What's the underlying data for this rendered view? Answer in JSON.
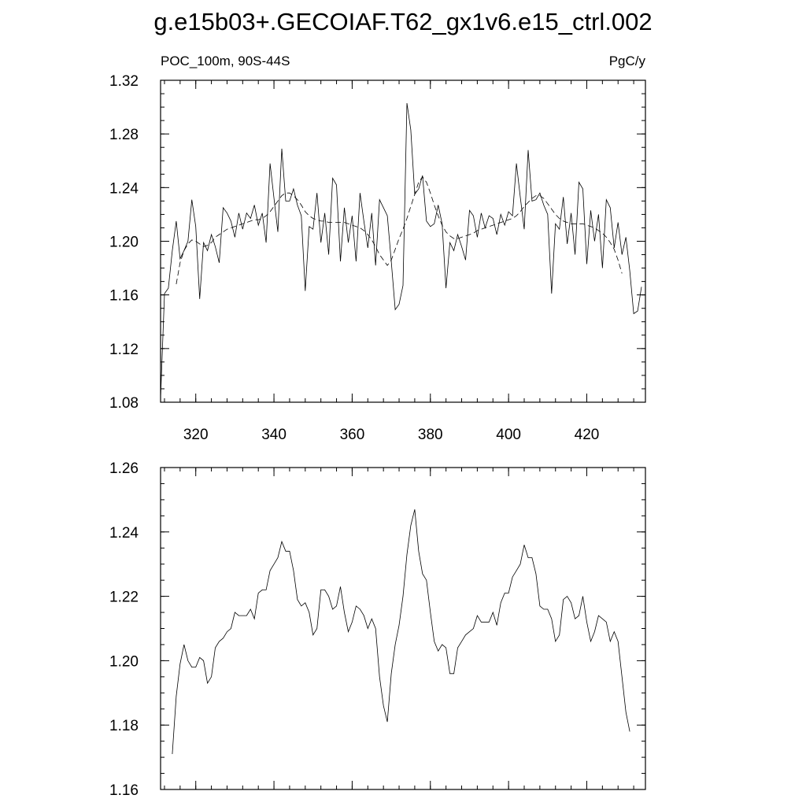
{
  "title": "g.e15b03+.GECOIAF.T62_gx1v6.e15_ctrl.002",
  "chart_data": [
    {
      "type": "line",
      "left_label": "POC_100m, 90S-44S",
      "right_label": "PgC/y",
      "xlim": [
        311,
        435
      ],
      "ylim": [
        1.08,
        1.32
      ],
      "x_ticks": [
        320,
        340,
        360,
        380,
        400,
        420
      ],
      "x_tick_labels": [
        "320",
        "340",
        "360",
        "380",
        "400",
        "420"
      ],
      "y_ticks": [
        1.08,
        1.12,
        1.16,
        1.2,
        1.24,
        1.28,
        1.32
      ],
      "y_tick_labels": [
        "1.08",
        "1.12",
        "1.16",
        "1.20",
        "1.24",
        "1.28",
        "1.32"
      ],
      "x_start": 311,
      "x_step": 1,
      "series": [
        {
          "style": "solid",
          "values": [
            1.083,
            1.161,
            1.165,
            1.193,
            1.215,
            1.187,
            1.193,
            1.2,
            1.231,
            1.211,
            1.157,
            1.199,
            1.193,
            1.205,
            1.196,
            1.184,
            1.225,
            1.221,
            1.215,
            1.203,
            1.221,
            1.209,
            1.221,
            1.217,
            1.227,
            1.212,
            1.221,
            1.199,
            1.258,
            1.232,
            1.207,
            1.269,
            1.23,
            1.23,
            1.239,
            1.227,
            1.219,
            1.163,
            1.211,
            1.209,
            1.236,
            1.199,
            1.221,
            1.19,
            1.247,
            1.242,
            1.185,
            1.225,
            1.199,
            1.219,
            1.185,
            1.236,
            1.215,
            1.195,
            1.221,
            1.182,
            1.231,
            1.225,
            1.219,
            1.185,
            1.149,
            1.153,
            1.167,
            1.303,
            1.283,
            1.235,
            1.239,
            1.249,
            1.215,
            1.211,
            1.213,
            1.227,
            1.213,
            1.165,
            1.199,
            1.193,
            1.205,
            1.196,
            1.186,
            1.223,
            1.219,
            1.203,
            1.221,
            1.21,
            1.219,
            1.217,
            1.205,
            1.22,
            1.212,
            1.222,
            1.219,
            1.258,
            1.233,
            1.209,
            1.268,
            1.23,
            1.231,
            1.236,
            1.227,
            1.22,
            1.161,
            1.213,
            1.209,
            1.233,
            1.198,
            1.221,
            1.19,
            1.244,
            1.239,
            1.183,
            1.223,
            1.2,
            1.22,
            1.18,
            1.231,
            1.225,
            1.195,
            1.214,
            1.19,
            1.203,
            1.178,
            1.146,
            1.148,
            1.166
          ]
        },
        {
          "style": "dashed",
          "values": [
            null,
            null,
            null,
            null,
            1.168,
            1.184,
            1.193,
            1.198,
            1.201,
            1.2,
            1.198,
            1.196,
            1.197,
            1.199,
            1.203,
            1.205,
            1.207,
            1.209,
            1.21,
            1.211,
            1.212,
            1.213,
            1.214,
            1.215,
            1.216,
            1.216,
            1.217,
            1.219,
            1.222,
            1.226,
            1.23,
            1.234,
            1.236,
            1.236,
            1.234,
            1.231,
            1.227,
            1.222,
            1.219,
            1.217,
            1.216,
            1.215,
            1.215,
            1.214,
            1.214,
            1.214,
            1.214,
            1.214,
            1.213,
            1.212,
            1.211,
            1.21,
            1.208,
            1.205,
            1.201,
            1.196,
            1.19,
            1.186,
            1.182,
            1.186,
            1.194,
            1.202,
            1.209,
            1.217,
            1.226,
            1.235,
            1.244,
            1.248,
            1.244,
            1.236,
            1.227,
            1.219,
            1.212,
            1.207,
            1.204,
            1.202,
            1.202,
            1.203,
            1.204,
            1.205,
            1.206,
            1.208,
            1.209,
            1.21,
            1.211,
            1.212,
            1.213,
            1.214,
            1.215,
            1.216,
            1.217,
            1.219,
            1.222,
            1.226,
            1.229,
            1.232,
            1.234,
            1.234,
            1.232,
            1.228,
            1.224,
            1.22,
            1.217,
            1.215,
            1.214,
            1.213,
            1.213,
            1.213,
            1.213,
            1.212,
            1.211,
            1.21,
            1.208,
            1.206,
            1.203,
            1.199,
            1.194,
            1.186,
            1.176,
            null,
            null,
            null,
            null,
            null
          ]
        }
      ]
    },
    {
      "type": "line",
      "xlim": [
        311,
        435
      ],
      "ylim": [
        1.16,
        1.26
      ],
      "x_ticks": [
        320,
        340,
        360,
        380,
        400,
        420
      ],
      "y_ticks": [
        1.16,
        1.18,
        1.2,
        1.22,
        1.24,
        1.26
      ],
      "y_tick_labels": [
        "1.16",
        "1.18",
        "1.20",
        "1.22",
        "1.24",
        "1.26"
      ],
      "x_start": 314,
      "x_step": 1,
      "series": [
        {
          "style": "solid",
          "values": [
            1.171,
            1.189,
            1.199,
            1.205,
            1.2,
            1.198,
            1.198,
            1.201,
            1.2,
            1.193,
            1.195,
            1.204,
            1.206,
            1.207,
            1.209,
            1.21,
            1.215,
            1.214,
            1.214,
            1.214,
            1.216,
            1.213,
            1.221,
            1.222,
            1.222,
            1.228,
            1.23,
            1.232,
            1.237,
            1.234,
            1.234,
            1.228,
            1.219,
            1.217,
            1.218,
            1.215,
            1.208,
            1.21,
            1.222,
            1.222,
            1.22,
            1.216,
            1.217,
            1.223,
            1.215,
            1.209,
            1.212,
            1.217,
            1.216,
            1.214,
            1.21,
            1.213,
            1.21,
            1.195,
            1.186,
            1.181,
            1.196,
            1.205,
            1.211,
            1.22,
            1.233,
            1.242,
            1.247,
            1.234,
            1.227,
            1.225,
            1.215,
            1.206,
            1.203,
            1.205,
            1.204,
            1.196,
            1.196,
            1.204,
            1.206,
            1.208,
            1.209,
            1.21,
            1.214,
            1.212,
            1.212,
            1.212,
            1.215,
            1.211,
            1.218,
            1.221,
            1.221,
            1.226,
            1.228,
            1.23,
            1.236,
            1.232,
            1.232,
            1.227,
            1.217,
            1.216,
            1.216,
            1.213,
            1.206,
            1.208,
            1.219,
            1.22,
            1.218,
            1.213,
            1.214,
            1.22,
            1.212,
            1.206,
            1.209,
            1.214,
            1.213,
            1.212,
            1.206,
            1.209,
            1.206,
            1.195,
            1.184,
            1.178
          ]
        }
      ]
    }
  ]
}
